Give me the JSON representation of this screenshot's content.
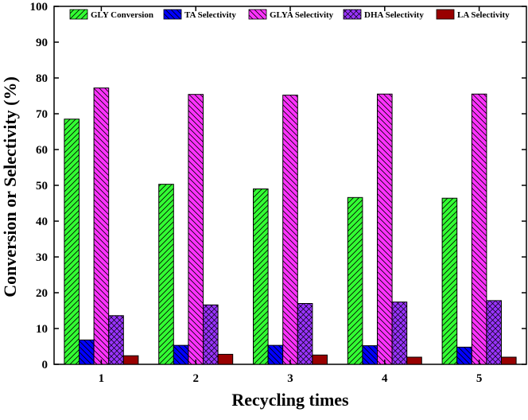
{
  "chart_data": {
    "type": "bar",
    "title": "",
    "xlabel": "Recycling times",
    "ylabel": "Conversion or Selectivity (%)",
    "categories": [
      "1",
      "2",
      "3",
      "4",
      "5"
    ],
    "ylim": [
      0,
      100
    ],
    "yticks": [
      0,
      10,
      20,
      30,
      40,
      50,
      60,
      70,
      80,
      90,
      100
    ],
    "grid": false,
    "legend_position": "top",
    "series": [
      {
        "name": "GLY Conversion",
        "color": "#33ff33",
        "pattern": "forward-diagonal",
        "values": [
          68.5,
          50.3,
          49.0,
          46.6,
          46.4
        ]
      },
      {
        "name": "TA Selectivity",
        "color": "#0000ff",
        "pattern": "back-diagonal",
        "values": [
          6.8,
          5.3,
          5.3,
          5.2,
          4.8
        ]
      },
      {
        "name": "GLYA Selectivity",
        "color": "#ff33ff",
        "pattern": "back-diagonal",
        "values": [
          77.2,
          75.4,
          75.2,
          75.5,
          75.5
        ]
      },
      {
        "name": "DHA Selectivity",
        "color": "#9933ff",
        "pattern": "crosshatch",
        "values": [
          13.6,
          16.6,
          17.0,
          17.4,
          17.8
        ]
      },
      {
        "name": "LA Selectivity",
        "color": "#990000",
        "pattern": "solid",
        "values": [
          2.4,
          2.8,
          2.6,
          2.0,
          2.0
        ]
      }
    ]
  }
}
